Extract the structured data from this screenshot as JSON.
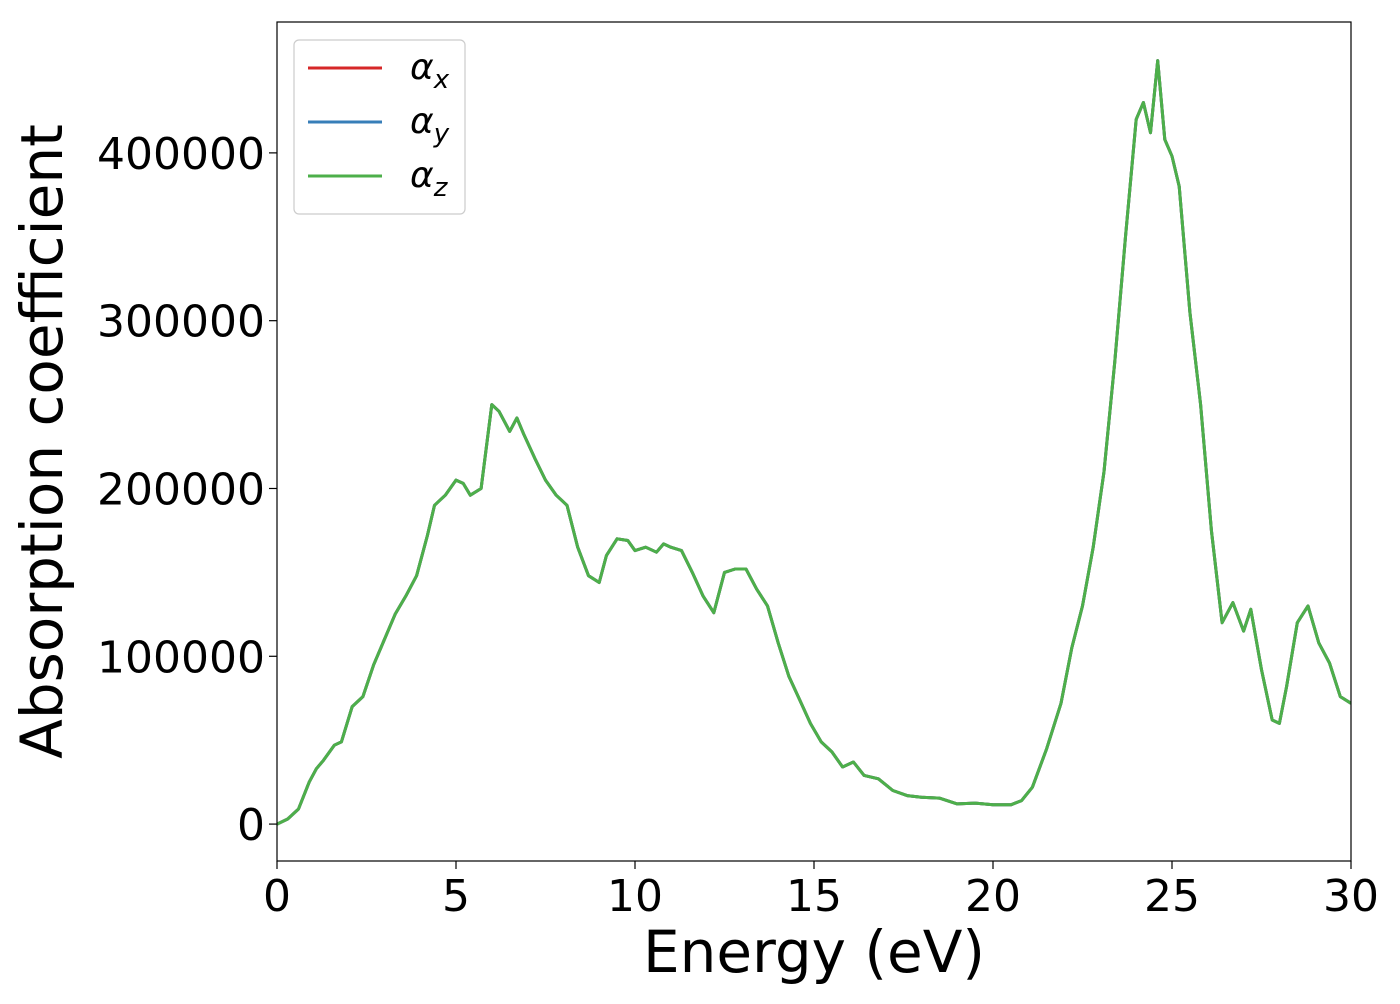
{
  "chart_data": {
    "type": "line",
    "title": "",
    "xlabel": "Energy (eV)",
    "ylabel": "Absorption coefficient",
    "xlim": [
      0,
      30
    ],
    "ylim": [
      -22000,
      478000
    ],
    "xticks": [
      0,
      5,
      10,
      15,
      20,
      25,
      30
    ],
    "yticks": [
      0,
      100000,
      200000,
      300000,
      400000
    ],
    "grid": false,
    "legend": {
      "placement": "top-left",
      "entries": [
        {
          "symbol": "α",
          "subscript": "x",
          "color": "#d62728"
        },
        {
          "symbol": "α",
          "subscript": "y",
          "color": "#377eb8"
        },
        {
          "symbol": "α",
          "subscript": "z",
          "color": "#4daf4a"
        }
      ]
    },
    "x": [
      0,
      0.3,
      0.6,
      0.9,
      1.1,
      1.3,
      1.6,
      1.8,
      2.1,
      2.4,
      2.7,
      3.0,
      3.3,
      3.6,
      3.9,
      4.2,
      4.4,
      4.7,
      5.0,
      5.2,
      5.4,
      5.7,
      6.0,
      6.2,
      6.5,
      6.7,
      6.9,
      7.2,
      7.5,
      7.8,
      8.1,
      8.4,
      8.7,
      9.0,
      9.2,
      9.5,
      9.8,
      10.0,
      10.3,
      10.6,
      10.8,
      11.0,
      11.3,
      11.6,
      11.9,
      12.2,
      12.5,
      12.8,
      13.1,
      13.4,
      13.7,
      14.0,
      14.3,
      14.6,
      14.9,
      15.2,
      15.5,
      15.8,
      16.1,
      16.4,
      16.8,
      17.2,
      17.6,
      18.0,
      18.5,
      19.0,
      19.5,
      20.0,
      20.5,
      20.8,
      21.1,
      21.5,
      21.9,
      22.2,
      22.5,
      22.8,
      23.1,
      23.4,
      23.7,
      24.0,
      24.2,
      24.4,
      24.6,
      24.8,
      25.0,
      25.2,
      25.5,
      25.8,
      26.1,
      26.4,
      26.7,
      27.0,
      27.2,
      27.5,
      27.8,
      28.0,
      28.2,
      28.5,
      28.8,
      29.1,
      29.4,
      29.7,
      30.0
    ],
    "series": [
      {
        "name": "α_x",
        "color": "#d62728",
        "values": [
          0,
          3000,
          9000,
          25000,
          33000,
          38000,
          47000,
          49000,
          70000,
          76000,
          95000,
          110000,
          125000,
          136000,
          148000,
          172000,
          190000,
          196000,
          205000,
          203000,
          196000,
          200000,
          250000,
          246000,
          234000,
          242000,
          232000,
          218000,
          205000,
          196000,
          190000,
          165000,
          148000,
          144000,
          160000,
          170000,
          169000,
          163000,
          165000,
          162000,
          167000,
          165000,
          163000,
          150000,
          136000,
          126000,
          150000,
          152000,
          152000,
          140000,
          130000,
          108000,
          88000,
          74000,
          60000,
          49000,
          43000,
          34000,
          37000,
          29000,
          27000,
          20000,
          17000,
          16000,
          15500,
          12000,
          12500,
          11500,
          11500,
          14000,
          22000,
          45000,
          72000,
          105000,
          130000,
          165000,
          210000,
          275000,
          350000,
          420000,
          430000,
          412000,
          455000,
          408000,
          398000,
          380000,
          305000,
          250000,
          175000,
          120000,
          132000,
          115000,
          128000,
          92000,
          62000,
          60000,
          82000,
          120000,
          130000,
          108000,
          96000,
          76000,
          72000
        ]
      },
      {
        "name": "α_y",
        "color": "#377eb8",
        "values": [
          0,
          3000,
          9000,
          25000,
          33000,
          38000,
          47000,
          49000,
          70000,
          76000,
          95000,
          110000,
          125000,
          136000,
          148000,
          172000,
          190000,
          196000,
          205000,
          203000,
          196000,
          200000,
          250000,
          246000,
          234000,
          242000,
          232000,
          218000,
          205000,
          196000,
          190000,
          165000,
          148000,
          144000,
          160000,
          170000,
          169000,
          163000,
          165000,
          162000,
          167000,
          165000,
          163000,
          150000,
          136000,
          126000,
          150000,
          152000,
          152000,
          140000,
          130000,
          108000,
          88000,
          74000,
          60000,
          49000,
          43000,
          34000,
          37000,
          29000,
          27000,
          20000,
          17000,
          16000,
          15500,
          12000,
          12500,
          11500,
          11500,
          14000,
          22000,
          45000,
          72000,
          105000,
          130000,
          165000,
          210000,
          275000,
          350000,
          420000,
          430000,
          412000,
          455000,
          408000,
          398000,
          380000,
          305000,
          250000,
          175000,
          120000,
          132000,
          115000,
          128000,
          92000,
          62000,
          60000,
          82000,
          120000,
          130000,
          108000,
          96000,
          76000,
          72000
        ]
      },
      {
        "name": "α_z",
        "color": "#4daf4a",
        "values": [
          0,
          3000,
          9000,
          25000,
          33000,
          38000,
          47000,
          49000,
          70000,
          76000,
          95000,
          110000,
          125000,
          136000,
          148000,
          172000,
          190000,
          196000,
          205000,
          203000,
          196000,
          200000,
          250000,
          246000,
          234000,
          242000,
          232000,
          218000,
          205000,
          196000,
          190000,
          165000,
          148000,
          144000,
          160000,
          170000,
          169000,
          163000,
          165000,
          162000,
          167000,
          165000,
          163000,
          150000,
          136000,
          126000,
          150000,
          152000,
          152000,
          140000,
          130000,
          108000,
          88000,
          74000,
          60000,
          49000,
          43000,
          34000,
          37000,
          29000,
          27000,
          20000,
          17000,
          16000,
          15500,
          12000,
          12500,
          11500,
          11500,
          14000,
          22000,
          45000,
          72000,
          105000,
          130000,
          165000,
          210000,
          275000,
          350000,
          420000,
          430000,
          412000,
          455000,
          408000,
          398000,
          380000,
          305000,
          250000,
          175000,
          120000,
          132000,
          115000,
          128000,
          92000,
          62000,
          60000,
          82000,
          120000,
          130000,
          108000,
          96000,
          76000,
          72000
        ]
      }
    ]
  }
}
